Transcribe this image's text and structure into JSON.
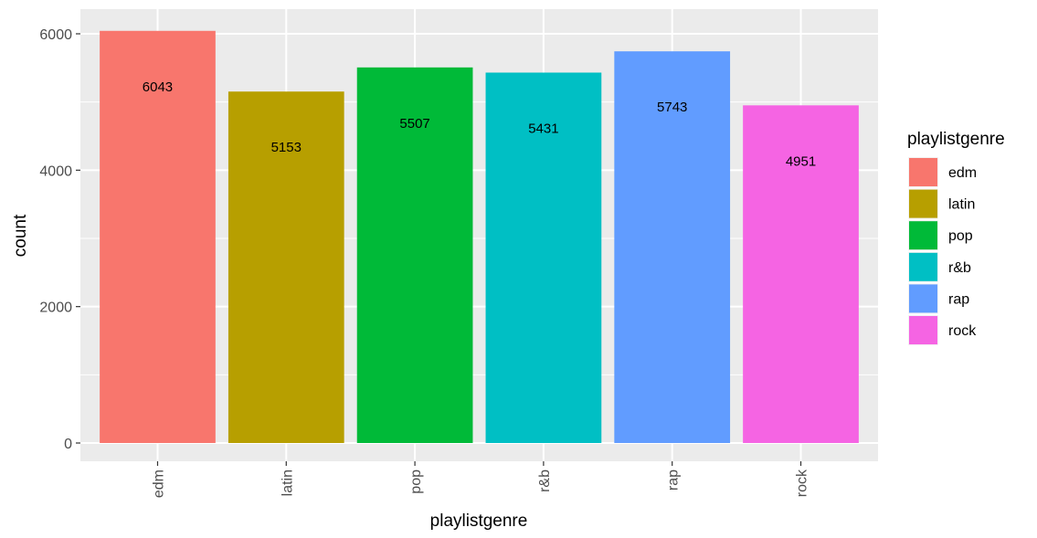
{
  "chart_data": {
    "type": "bar",
    "xlabel": "playlistgenre",
    "ylabel": "count",
    "categories": [
      "edm",
      "latin",
      "pop",
      "r&b",
      "rap",
      "rock"
    ],
    "values": [
      6043,
      5153,
      5507,
      5431,
      5743,
      4951
    ],
    "data_labels": [
      "6043",
      "5153",
      "5507",
      "5431",
      "5743",
      "4951"
    ],
    "colors": [
      "#F8766D",
      "#B79F00",
      "#00BA38",
      "#00BFC4",
      "#619CFF",
      "#F564E3"
    ],
    "ylim": [
      0,
      6300
    ],
    "yticks": [
      0,
      2000,
      4000,
      6000
    ],
    "ytick_labels": [
      "0",
      "2000",
      "4000",
      "6000"
    ],
    "grid": true,
    "panel_background": "#EBEBEB",
    "legend": {
      "title": "playlistgenre",
      "position": "right",
      "entries": [
        "edm",
        "latin",
        "pop",
        "r&b",
        "rap",
        "rock"
      ]
    }
  }
}
